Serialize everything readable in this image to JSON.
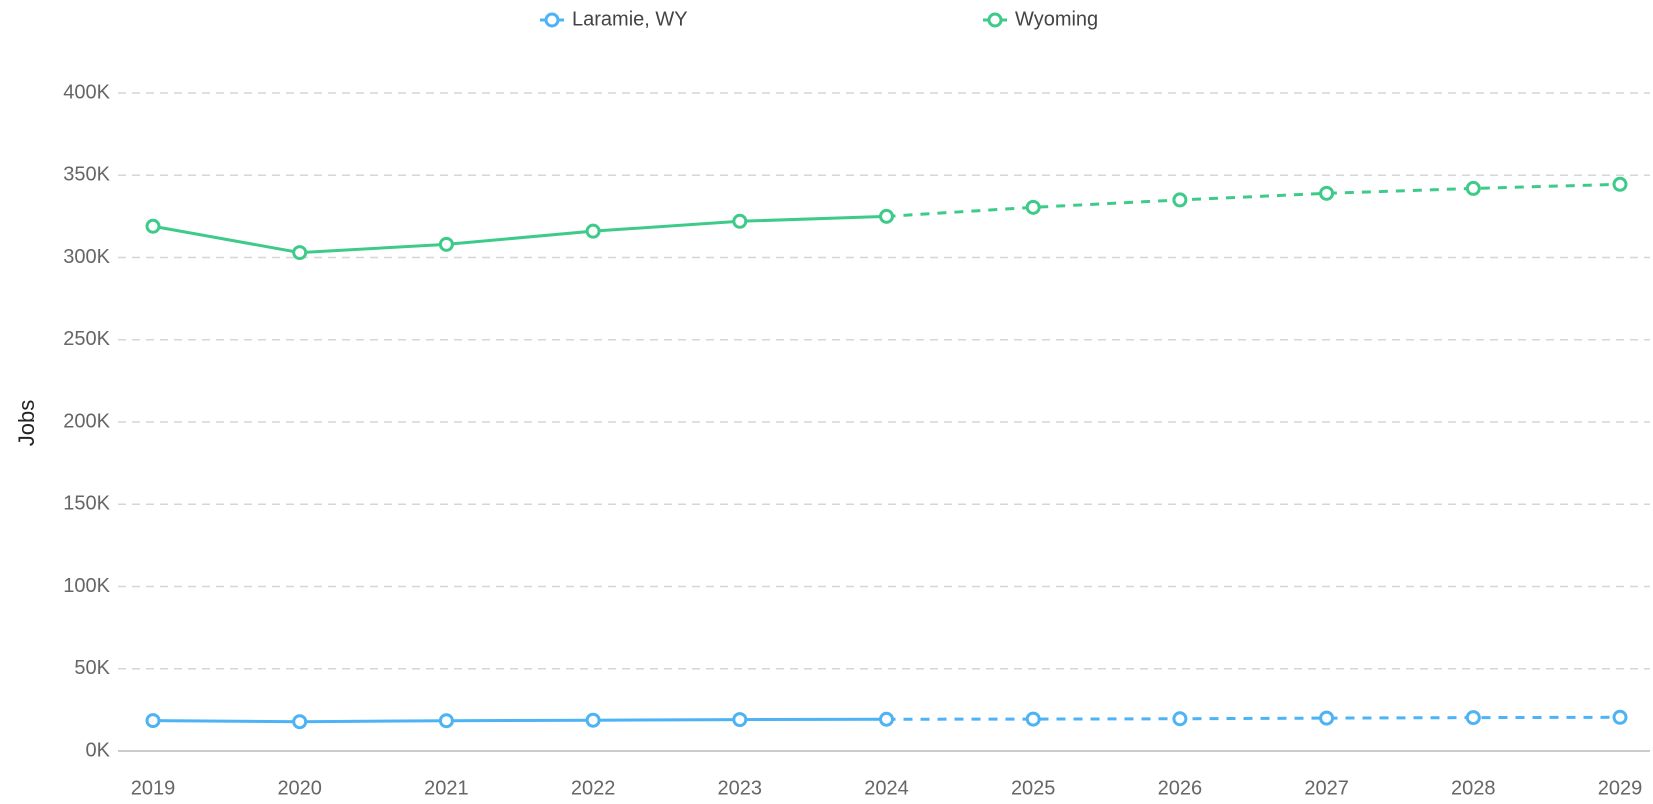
{
  "chart_data": {
    "type": "line",
    "y_label": "Jobs",
    "categories": [
      "2019",
      "2020",
      "2021",
      "2022",
      "2023",
      "2024",
      "2025",
      "2026",
      "2027",
      "2028",
      "2029"
    ],
    "dashed_from": "2024",
    "series": [
      {
        "name": "Laramie, WY",
        "color": "#4db3f5",
        "values": [
          18500,
          17800,
          18400,
          18700,
          19100,
          19300,
          19400,
          19600,
          20000,
          20300,
          20500
        ]
      },
      {
        "name": "Wyoming",
        "color": "#3ecb8a",
        "values": [
          319000,
          303000,
          308000,
          316000,
          322000,
          325000,
          330500,
          335000,
          339000,
          342000,
          344500
        ]
      }
    ],
    "ylim": [
      0,
      400000
    ],
    "yticks": [
      {
        "value": 0,
        "label": "0K"
      },
      {
        "value": 50000,
        "label": "50K"
      },
      {
        "value": 100000,
        "label": "100K"
      },
      {
        "value": 150000,
        "label": "150K"
      },
      {
        "value": 200000,
        "label": "200K"
      },
      {
        "value": 250000,
        "label": "250K"
      },
      {
        "value": 300000,
        "label": "300K"
      },
      {
        "value": 350000,
        "label": "350K"
      },
      {
        "value": 400000,
        "label": "400K"
      }
    ],
    "grid": true,
    "legend": "top"
  }
}
